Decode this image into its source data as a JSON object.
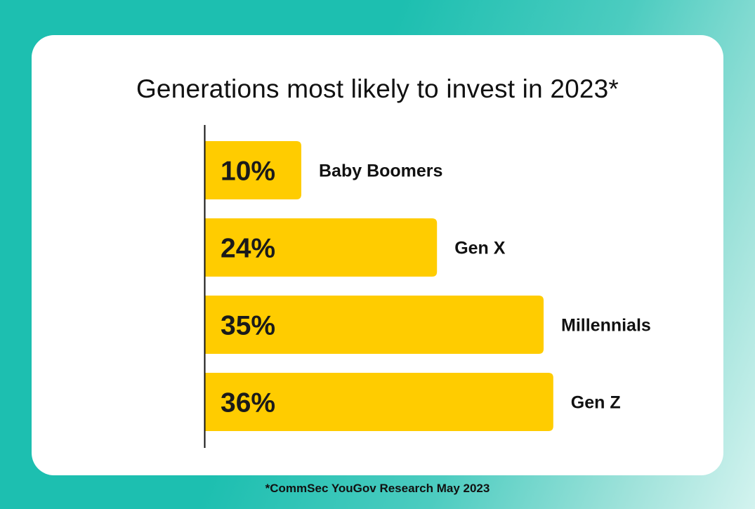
{
  "title": "Generations most likely to invest in 2023*",
  "footnote": "*CommSec YouGov Research May 2023",
  "colors": {
    "bar": "#ffcc00",
    "axis": "#111111",
    "background": "#1dbfb0",
    "card": "#ffffff"
  },
  "chart_data": {
    "type": "bar",
    "orientation": "horizontal",
    "title": "Generations most likely to invest in 2023*",
    "categories": [
      "Baby Boomers",
      "Gen X",
      "Millennials",
      "Gen Z"
    ],
    "values": [
      10,
      24,
      35,
      36
    ],
    "value_labels": [
      "10%",
      "24%",
      "35%",
      "36%"
    ],
    "xlabel": "",
    "ylabel": "",
    "xlim": [
      0,
      36
    ],
    "grid": false,
    "legend": "none"
  }
}
